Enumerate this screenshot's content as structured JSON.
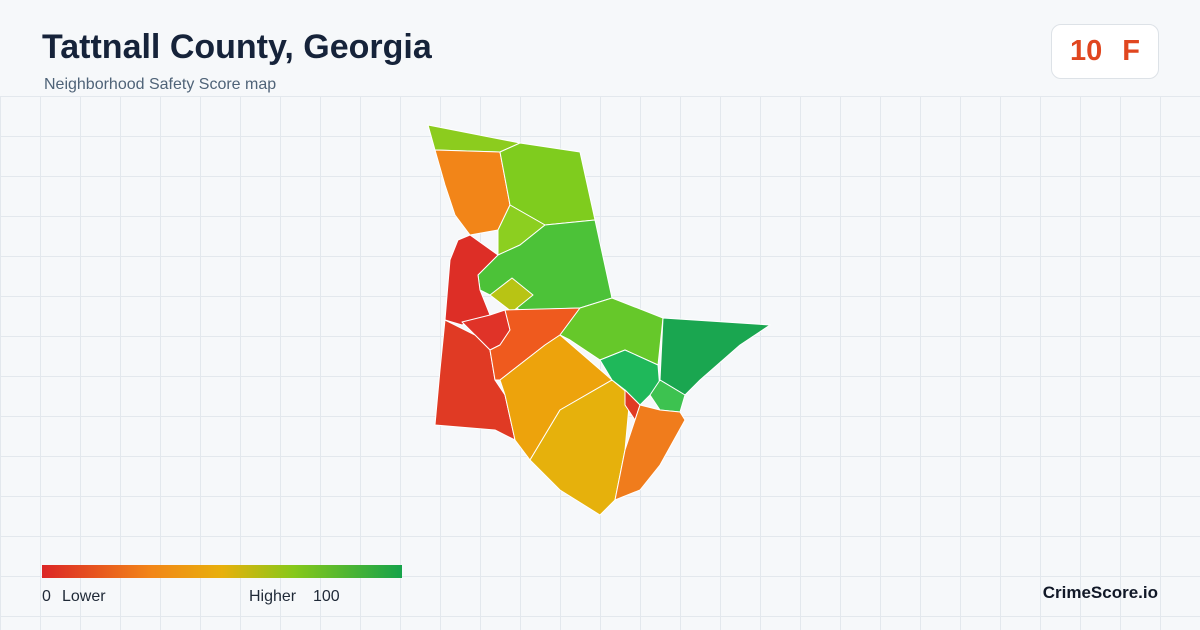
{
  "header": {
    "title": "Tattnall County, Georgia",
    "subtitle": "Neighborhood Safety Score map"
  },
  "score": {
    "value": 10,
    "grade": "F"
  },
  "legend": {
    "min": 0,
    "min_label": "Lower",
    "max_label": "Higher",
    "max": 100
  },
  "brand": "CrimeScore.io"
}
